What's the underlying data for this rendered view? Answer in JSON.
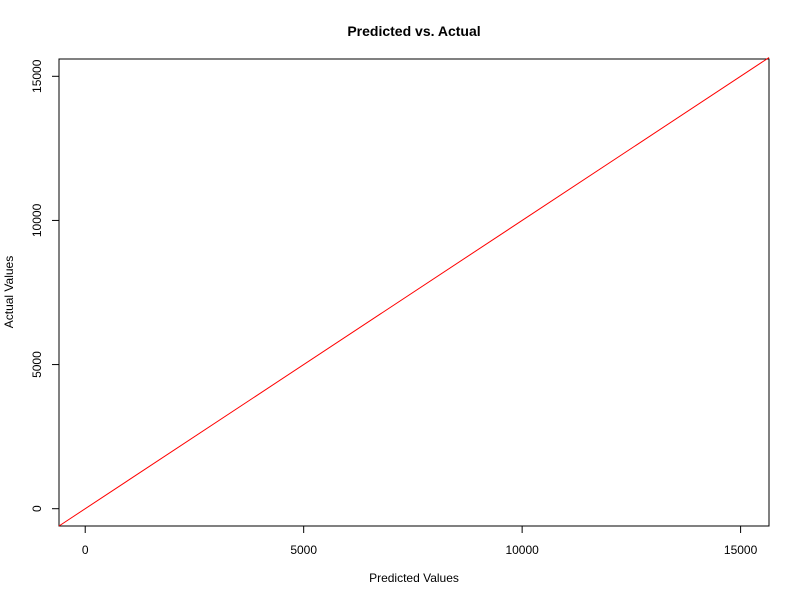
{
  "chart_data": {
    "type": "line",
    "title": "Predicted vs. Actual",
    "xlabel": "Predicted Values",
    "ylabel": "Actual Values",
    "xlim": [
      -600,
      15650
    ],
    "ylim": [
      -600,
      15600
    ],
    "x_ticks": [
      0,
      5000,
      10000,
      15000
    ],
    "y_ticks": [
      0,
      5000,
      10000,
      15000
    ],
    "x_tick_labels": [
      "0",
      "5000",
      "10000",
      "15000"
    ],
    "y_tick_labels": [
      "0",
      "5000",
      "10000",
      "15000"
    ],
    "grid": false,
    "series": [
      {
        "x": [
          -600,
          15650
        ],
        "y": [
          -600,
          15650
        ],
        "color": "#ff0000"
      }
    ]
  }
}
